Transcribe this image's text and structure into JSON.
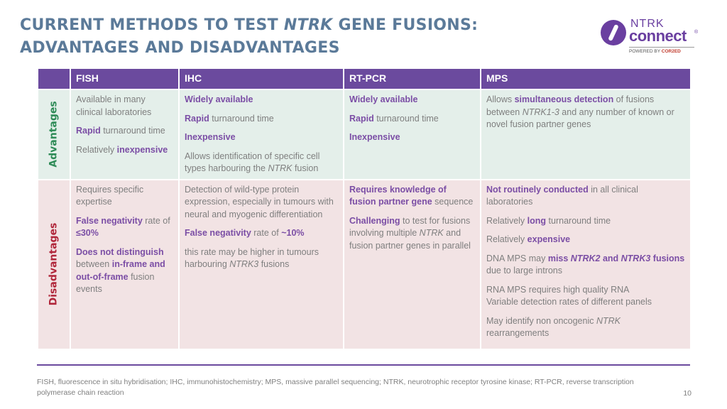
{
  "title": {
    "line1_pre": "CURRENT METHODS TO TEST ",
    "line1_italic": "NTRK",
    "line1_post": " GENE FUSIONS:",
    "line2": "ADVANTAGES AND DISADVANTAGES"
  },
  "logo": {
    "ntrk": "NTRK",
    "connect": "connect",
    "registered": "®",
    "powered_by": "POWERED BY",
    "powered_brand": "COR2ED",
    "icon": "ntrk-connect-logo-icon",
    "color": "#6a3fa0"
  },
  "table": {
    "headers": [
      "FISH",
      "IHC",
      "RT-PCR",
      "MPS"
    ],
    "row_labels": {
      "advantages": "Advantages",
      "disadvantages": "Disadvantages"
    },
    "advantages": {
      "fish": {
        "p1": "Available in many clinical laboratories",
        "p2_b": "Rapid",
        "p2_t": " turnaround time",
        "p3_t": "Relatively ",
        "p3_b": "inexpensive"
      },
      "ihc": {
        "p1_b": "Widely available",
        "p2_b": "Rapid",
        "p2_t": " turnaround time",
        "p3_b": "Inexpensive",
        "p4_t1": "Allows identification of specific cell types harbouring the ",
        "p4_i": "NTRK",
        "p4_t2": " fusion"
      },
      "rtpcr": {
        "p1_b": "Widely available",
        "p2_b": "Rapid",
        "p2_t": " turnaround time",
        "p3_b": "Inexpensive"
      },
      "mps": {
        "p1_t1": "Allows ",
        "p1_b": "simultaneous detection",
        "p1_t2": " of fusions between ",
        "p1_i": "NTRK1-3",
        "p1_t3": " and any number of known or novel fusion partner genes"
      }
    },
    "disadvantages": {
      "fish": {
        "p1": "Requires specific expertise",
        "p2_b1": "False negativity",
        "p2_t": " rate of ",
        "p2_b2": "≤30%",
        "p3_b1": "Does not distinguish",
        "p3_t1": " between ",
        "p3_b2": "in-frame and out-of-frame",
        "p3_t2": " fusion events"
      },
      "ihc": {
        "p1": "Detection of wild-type protein expression, especially in tumours with neural and myogenic differentiation",
        "p2_b1": "False negativity",
        "p2_t": " rate of ",
        "p2_b2": "~10%",
        "p3_t1": "this rate may be higher in tumours harbouring ",
        "p3_i": "NTRK3",
        "p3_t2": " fusions"
      },
      "rtpcr": {
        "p1_b": "Requires knowledge of fusion partner gene",
        "p1_t": " sequence",
        "p2_b": "Challenging",
        "p2_t1": " to test for fusions involving multiple ",
        "p2_i": "NTRK",
        "p2_t2": " and fusion partner genes in parallel"
      },
      "mps": {
        "p1_b": "Not routinely conducted",
        "p1_t": " in all clinical laboratories",
        "p2_t1": "Relatively ",
        "p2_b": "long",
        "p2_t2": " turnaround time",
        "p3_t": "Relatively ",
        "p3_b": "expensive",
        "p4_t1": "DNA MPS may ",
        "p4_b1": "miss ",
        "p4_bi1": "NTRK2",
        "p4_b2": " and ",
        "p4_bi2": "NTRK3",
        "p4_b3": " fusions",
        "p4_t2": " due to large introns",
        "p5_l1": "RNA MPS requires high quality RNA",
        "p5_l2": "Variable detection rates of different panels",
        "p6_t": "May identify non oncogenic ",
        "p6_i": "NTRK",
        "p6_t2": " rearrangements"
      }
    }
  },
  "footnote": "FISH, fluorescence in situ hybridisation; IHC, immunohistochemistry; MPS, massive parallel sequencing; NTRK, neurotrophic receptor tyrosine kinase; RT-PCR, reverse transcription polymerase chain reaction",
  "page_number": "10",
  "colors": {
    "title": "#5b7a99",
    "header_bg": "#6b4a9e",
    "advantages_bg": "#e4efea",
    "disadvantages_bg": "#f2e3e4",
    "advantages_label": "#2e8b57",
    "disadvantages_label": "#b0263a",
    "emphasis": "#7b4ea5",
    "body_text": "#7f7f7f"
  }
}
